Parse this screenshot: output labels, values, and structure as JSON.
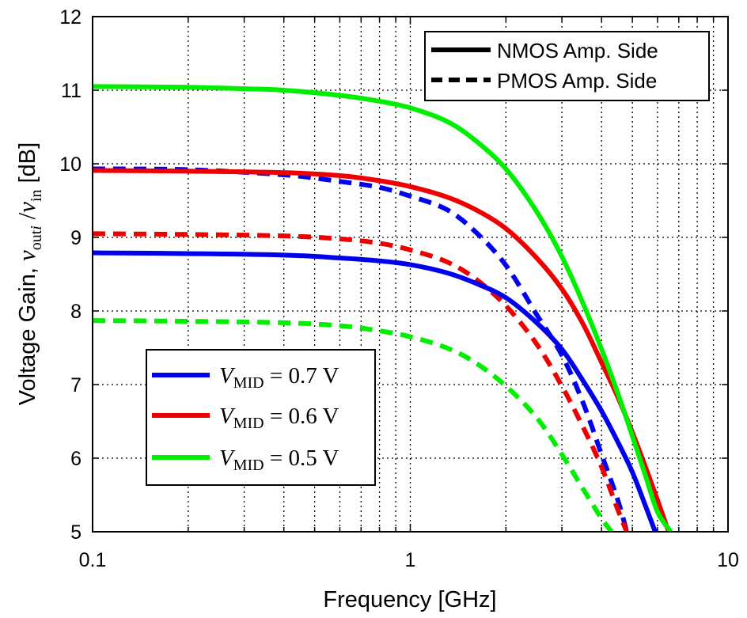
{
  "chart_data": {
    "type": "line",
    "xlabel": "Frequency [GHz]",
    "ylabel": {
      "prefix": "Voltage Gain, ",
      "v1": "v",
      "sub1": "out",
      "sub1_italic": "i",
      "slash": " /",
      "v2": "v",
      "sub2": "in",
      "unit": " [dB]"
    },
    "xscale": "log",
    "xlim": [
      0.1,
      10
    ],
    "ylim": [
      5,
      12
    ],
    "xticks": [
      "0.1",
      "1",
      "10"
    ],
    "yticks": [
      "5",
      "6",
      "7",
      "8",
      "9",
      "10",
      "11",
      "12"
    ],
    "grid": true,
    "legends": {
      "style": {
        "position": "top-right",
        "entries": [
          {
            "label": "NMOS Amp. Side",
            "dash": "solid"
          },
          {
            "label": "PMOS Amp. Side",
            "dash": "dashed"
          }
        ]
      },
      "color": {
        "position": "lower-left",
        "entries": [
          {
            "symbol": "V",
            "sub": "MID",
            "value": " = 0.7 V",
            "color": "#0000ee"
          },
          {
            "symbol": "V",
            "sub": "MID",
            "value": " = 0.6 V",
            "color": "#ee0000"
          },
          {
            "symbol": "V",
            "sub": "MID",
            "value": " = 0.5 V",
            "color": "#00ee00"
          }
        ]
      }
    },
    "series": [
      {
        "vmid": "0.7 V",
        "side": "NMOS",
        "color": "#0000ee",
        "dash": "solid",
        "x": [
          0.1,
          0.2,
          0.4,
          0.6,
          0.8,
          1.0,
          1.3,
          1.6,
          2.0,
          2.5,
          3.0,
          3.5,
          4.0,
          4.5,
          5.0,
          5.5,
          5.9
        ],
        "y": [
          8.79,
          8.78,
          8.76,
          8.72,
          8.68,
          8.63,
          8.52,
          8.38,
          8.18,
          7.84,
          7.48,
          7.05,
          6.64,
          6.22,
          5.81,
          5.35,
          5.0
        ]
      },
      {
        "vmid": "0.7 V",
        "side": "PMOS",
        "color": "#0000ee",
        "dash": "dashed",
        "x": [
          0.1,
          0.2,
          0.4,
          0.6,
          0.8,
          1.0,
          1.3,
          1.6,
          2.0,
          2.5,
          3.0,
          3.5,
          4.0,
          4.5,
          4.8
        ],
        "y": [
          9.93,
          9.92,
          9.85,
          9.76,
          9.68,
          9.56,
          9.38,
          9.08,
          8.62,
          7.95,
          7.4,
          6.75,
          6.05,
          5.43,
          5.0
        ]
      },
      {
        "vmid": "0.6 V",
        "side": "NMOS",
        "color": "#ee0000",
        "dash": "solid",
        "x": [
          0.1,
          0.2,
          0.4,
          0.6,
          0.8,
          1.0,
          1.3,
          1.6,
          2.0,
          2.5,
          3.0,
          3.5,
          4.0,
          4.5,
          5.0,
          5.5,
          6.0,
          6.5
        ],
        "y": [
          9.91,
          9.9,
          9.88,
          9.84,
          9.77,
          9.69,
          9.55,
          9.38,
          9.12,
          8.72,
          8.3,
          7.82,
          7.3,
          6.83,
          6.35,
          5.88,
          5.43,
          5.0
        ]
      },
      {
        "vmid": "0.6 V",
        "side": "PMOS",
        "color": "#ee0000",
        "dash": "dashed",
        "x": [
          0.1,
          0.2,
          0.4,
          0.6,
          0.8,
          1.0,
          1.3,
          1.6,
          2.0,
          2.5,
          3.0,
          3.5,
          4.0,
          4.5,
          4.8
        ],
        "y": [
          9.05,
          9.04,
          9.02,
          8.98,
          8.92,
          8.83,
          8.67,
          8.44,
          8.07,
          7.55,
          6.98,
          6.42,
          5.88,
          5.3,
          5.0
        ]
      },
      {
        "vmid": "0.5 V",
        "side": "NMOS",
        "color": "#00ee00",
        "dash": "solid",
        "x": [
          0.1,
          0.2,
          0.3,
          0.4,
          0.6,
          0.8,
          1.0,
          1.3,
          1.6,
          2.0,
          2.5,
          3.0,
          3.5,
          4.0,
          4.5,
          5.0,
          5.5,
          6.0,
          6.6
        ],
        "y": [
          11.05,
          11.04,
          11.02,
          11.0,
          10.93,
          10.85,
          10.76,
          10.58,
          10.32,
          9.93,
          9.35,
          8.74,
          8.1,
          7.48,
          6.88,
          6.3,
          5.76,
          5.27,
          5.0
        ]
      },
      {
        "vmid": "0.5 V",
        "side": "PMOS",
        "color": "#00ee00",
        "dash": "dashed",
        "x": [
          0.1,
          0.2,
          0.4,
          0.6,
          0.8,
          1.0,
          1.3,
          1.6,
          2.0,
          2.5,
          3.0,
          3.5,
          4.0,
          4.3
        ],
        "y": [
          7.87,
          7.86,
          7.84,
          7.8,
          7.73,
          7.65,
          7.5,
          7.3,
          6.98,
          6.55,
          6.05,
          5.58,
          5.18,
          5.0
        ]
      }
    ]
  }
}
